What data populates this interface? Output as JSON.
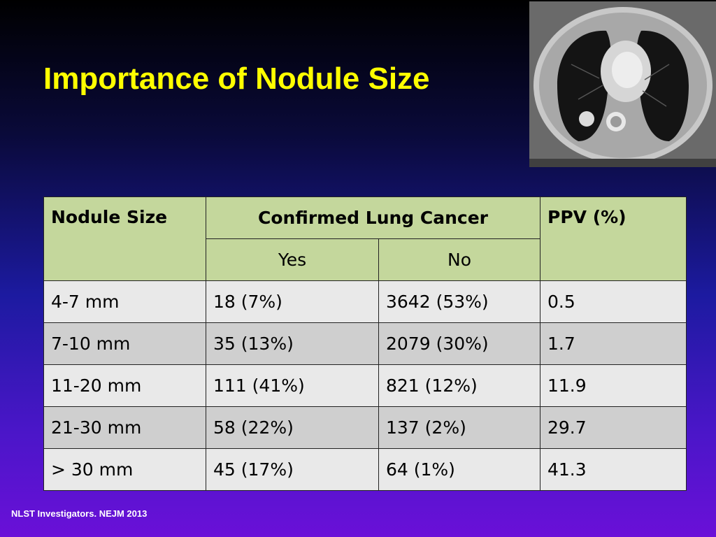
{
  "slide": {
    "title": "Importance of Nodule Size",
    "citation": "NLST Investigators. NEJM 2013"
  },
  "table": {
    "headers": {
      "nodule_size": "Nodule Size",
      "confirmed": "Confirmed Lung Cancer",
      "yes": "Yes",
      "no": "No",
      "ppv": "PPV (%)"
    },
    "rows": [
      {
        "size": "4-7 mm",
        "yes": "18 (7%)",
        "no": "3642 (53%)",
        "ppv": "0.5"
      },
      {
        "size": "7-10 mm",
        "yes": "35 (13%)",
        "no": "2079 (30%)",
        "ppv": "1.7"
      },
      {
        "size": "11-20 mm",
        "yes": "111 (41%)",
        "no": "821 (12%)",
        "ppv": "11.9"
      },
      {
        "size": "21-30 mm",
        "yes": "58 (22%)",
        "no": "137 (2%)",
        "ppv": "29.7"
      },
      {
        "size": "> 30 mm",
        "yes": "45 (17%)",
        "no": "64 (1%)",
        "ppv": "41.3"
      }
    ]
  },
  "colors": {
    "title": "#ffff00",
    "header_fill": "#c4d79c",
    "row_light": "#e9e9e9",
    "row_dark": "#cfcfcf"
  },
  "image": {
    "icon": "ct-scan-chest-image"
  }
}
